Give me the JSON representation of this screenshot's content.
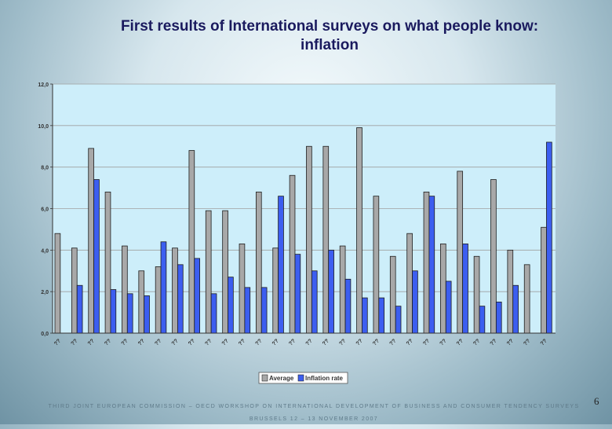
{
  "slide": {
    "title_line1": "First results of International surveys on what people know:",
    "title_line2": "inflation",
    "footer_line1": "THIRD JOINT EUROPEAN COMMISSION – OECD WORKSHOP ON INTERNATIONAL DEVELOPMENT OF BUSINESS AND CONSUMER TENDENCY SURVEYS",
    "footer_line2": "BRUSSELS    12 – 13 NOVEMBER 2007",
    "number": "6"
  },
  "colors": {
    "plot_background": "#cdeefa",
    "average": "#a8a8a8",
    "inflation_rate": "#3c5ef0",
    "gridline": "#a0a0a0"
  },
  "chart_data": {
    "type": "bar",
    "title": "",
    "xlabel": "",
    "ylabel": "",
    "ylim": [
      0,
      12
    ],
    "yticks": [
      "0,0",
      "2,0",
      "4,0",
      "6,0",
      "8,0",
      "10,0",
      "12,0"
    ],
    "grid": true,
    "legend_position": "bottom-center",
    "categories": [
      "??",
      "??",
      "??",
      "??",
      "??",
      "??",
      "??",
      "??",
      "??",
      "??",
      "??",
      "??",
      "??",
      "??",
      "??",
      "??",
      "??",
      "??",
      "??",
      "??",
      "??",
      "??",
      "??",
      "??",
      "??",
      "??",
      "??",
      "??",
      "??",
      "??"
    ],
    "series": [
      {
        "name": "Average",
        "values": [
          4.8,
          4.1,
          8.9,
          6.8,
          4.2,
          3.0,
          3.2,
          4.1,
          8.8,
          5.9,
          5.9,
          4.3,
          6.8,
          4.1,
          7.6,
          9.0,
          9.0,
          4.2,
          9.9,
          6.6,
          3.7,
          4.8,
          6.8,
          4.3,
          7.8,
          3.7,
          7.4,
          4.0,
          3.3,
          5.1
        ]
      },
      {
        "name": "Inflation rate",
        "values": [
          null,
          2.3,
          7.4,
          2.1,
          1.9,
          1.8,
          4.4,
          3.3,
          3.6,
          1.9,
          2.7,
          2.2,
          2.2,
          6.6,
          3.8,
          3.0,
          4.0,
          2.6,
          1.7,
          1.7,
          1.3,
          3.0,
          6.6,
          2.5,
          4.3,
          1.3,
          1.5,
          2.3,
          null,
          9.2
        ]
      }
    ]
  }
}
